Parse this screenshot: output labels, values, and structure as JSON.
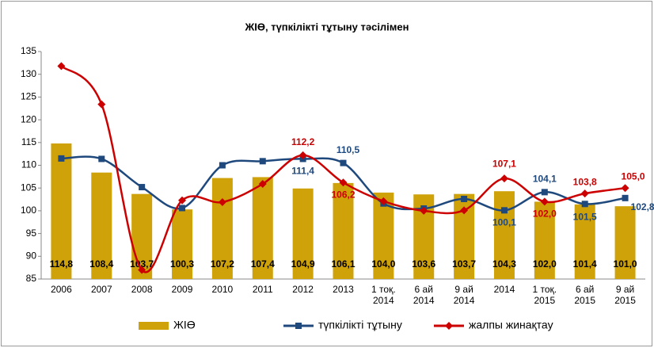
{
  "chart_data": {
    "type": "bar_line",
    "title": "ЖІӨ, түпкілікті тұтыну тәсілімен",
    "categories": [
      "2006",
      "2007",
      "2008",
      "2009",
      "2010",
      "2011",
      "2012",
      "2013",
      "1 тоқ.\n2014",
      "6 ай\n2014",
      "9 ай\n2014",
      "2014",
      "1 тоқ.\n2015",
      "6 ай\n2015",
      "9 ай\n2015"
    ],
    "ylim": [
      85,
      135
    ],
    "yticks": [
      85,
      90,
      95,
      100,
      105,
      110,
      115,
      120,
      125,
      130,
      135
    ],
    "legend": "bottom",
    "series": [
      {
        "name": "ЖІӨ",
        "type": "bar",
        "color": "#cfa20a",
        "values": [
          114.8,
          108.4,
          103.7,
          100.3,
          107.2,
          107.4,
          104.9,
          106.1,
          104.0,
          103.6,
          103.7,
          104.3,
          102.0,
          101.4,
          101.0
        ],
        "value_labels": [
          "114,8",
          "108,4",
          "103,7",
          "100,3",
          "107,2",
          "107,4",
          "104,9",
          "106,1",
          "104,0",
          "103,6",
          "103,7",
          "104,3",
          "102,0",
          "101,4",
          "101,0"
        ]
      },
      {
        "name": "түпкілікті тұтыну",
        "type": "line",
        "marker": "square",
        "color": "#1f497d",
        "values": [
          111.5,
          111.4,
          105.2,
          100.6,
          110.0,
          110.9,
          111.4,
          110.5,
          101.6,
          100.5,
          102.6,
          100.1,
          104.1,
          101.5,
          102.8
        ],
        "value_labels": [
          null,
          null,
          null,
          null,
          null,
          null,
          "111,4",
          "110,5",
          null,
          null,
          null,
          "100,1",
          "104,1",
          "101,5",
          "102,8"
        ]
      },
      {
        "name": "жалпы жинақтау",
        "type": "line",
        "marker": "diamond",
        "color": "#cc0000",
        "values": [
          131.8,
          123.4,
          87.0,
          102.3,
          101.9,
          105.9,
          112.2,
          106.2,
          102.1,
          100.0,
          100.1,
          107.1,
          102.0,
          103.8,
          105.0
        ],
        "value_labels": [
          null,
          null,
          null,
          null,
          null,
          null,
          "112,2",
          "106,2",
          null,
          null,
          null,
          "107,1",
          "102,0",
          "103,8",
          "105,0"
        ]
      }
    ]
  }
}
